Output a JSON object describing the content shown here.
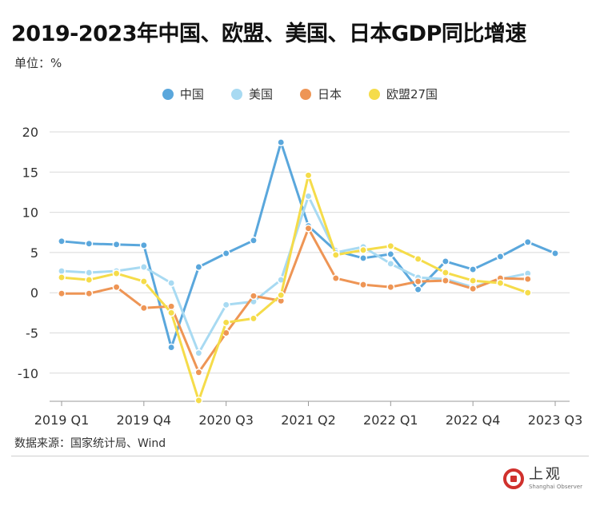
{
  "header": {
    "title": "2019-2023年中国、欧盟、美国、日本GDP同比增速",
    "unit": "单位：%"
  },
  "footer": {
    "source": "数据来源：国家统计局、Wind",
    "brand_name": "上观",
    "brand_sub": "Shanghai Observer"
  },
  "colors": {
    "china": "#5aa7dc",
    "usa": "#a8daf2",
    "japan": "#ee9555",
    "eu": "#f5dc4a",
    "grid": "#d9d9d9",
    "axis_text": "#333333"
  },
  "chart_data": {
    "type": "line",
    "title": "2019-2023年中国、欧盟、美国、日本GDP同比增速",
    "ylabel": "",
    "xlabel": "",
    "ylim": [
      -13.5,
      20
    ],
    "yticks": [
      20,
      15,
      10,
      5,
      0,
      -5,
      -10
    ],
    "grid": true,
    "legend_position": "top-center",
    "x": [
      "2019 Q1",
      "2019 Q2",
      "2019 Q3",
      "2019 Q4",
      "2020 Q1",
      "2020 Q2",
      "2020 Q3",
      "2020 Q4",
      "2021 Q1",
      "2021 Q2",
      "2021 Q3",
      "2021 Q4",
      "2022 Q1",
      "2022 Q2",
      "2022 Q3",
      "2022 Q4",
      "2023 Q1",
      "2023 Q2",
      "2023 Q3"
    ],
    "tick_labels": [
      "2019 Q1",
      "2019 Q4",
      "2020 Q3",
      "2021 Q2",
      "2022 Q1",
      "2022 Q4",
      "2023 Q3"
    ],
    "series": [
      {
        "name": "中国",
        "color_key": "china",
        "values": [
          6.4,
          6.1,
          6.0,
          5.9,
          -6.8,
          3.2,
          4.9,
          6.5,
          18.7,
          8.3,
          5.2,
          4.3,
          4.8,
          0.4,
          3.9,
          2.9,
          4.5,
          6.3,
          4.9
        ]
      },
      {
        "name": "美国",
        "color_key": "usa",
        "values": [
          2.7,
          2.5,
          2.7,
          3.2,
          1.2,
          -7.5,
          -1.5,
          -1.1,
          1.6,
          12.0,
          5.0,
          5.7,
          3.6,
          1.9,
          1.7,
          0.7,
          1.7,
          2.4,
          null
        ]
      },
      {
        "name": "日本",
        "color_key": "japan",
        "values": [
          -0.1,
          -0.1,
          0.7,
          -1.9,
          -1.7,
          -9.9,
          -5.0,
          -0.4,
          -1.0,
          8.0,
          1.8,
          1.0,
          0.7,
          1.4,
          1.5,
          0.5,
          1.8,
          1.7,
          null
        ]
      },
      {
        "name": "欧盟27国",
        "color_key": "eu",
        "values": [
          1.9,
          1.6,
          2.4,
          1.4,
          -2.5,
          -13.4,
          -3.7,
          -3.2,
          -0.3,
          14.6,
          4.7,
          5.3,
          5.8,
          4.2,
          2.5,
          1.5,
          1.2,
          0.0,
          null
        ]
      }
    ]
  }
}
